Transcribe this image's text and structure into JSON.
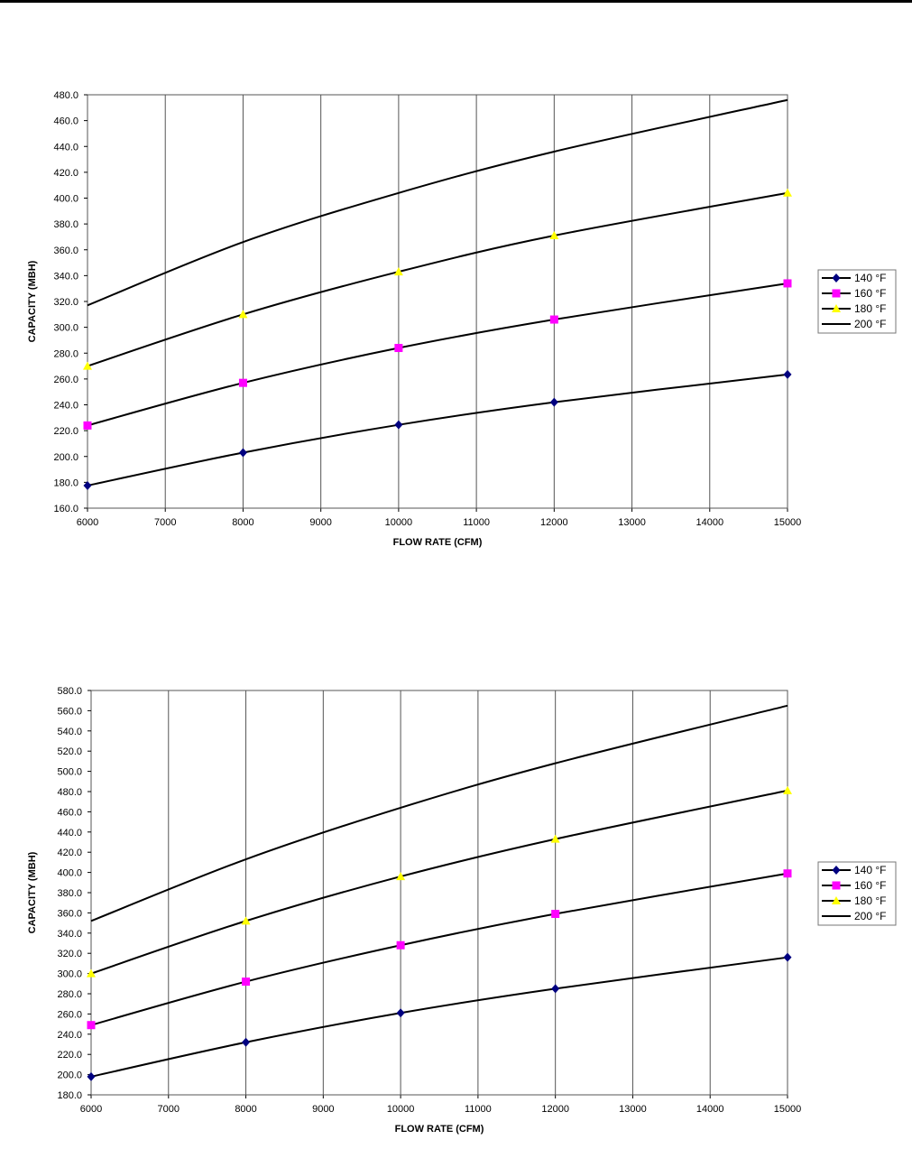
{
  "chart_data": [
    {
      "type": "line",
      "title": "",
      "xlabel": "FLOW RATE (CFM)",
      "ylabel": "CAPACITY (MBH)",
      "xlim": [
        6000,
        15000
      ],
      "ylim": [
        160,
        480
      ],
      "xticks": [
        6000,
        7000,
        8000,
        9000,
        10000,
        11000,
        12000,
        13000,
        14000,
        15000
      ],
      "yticks": [
        160,
        180,
        200,
        220,
        240,
        260,
        280,
        300,
        320,
        340,
        360,
        380,
        400,
        420,
        440,
        460,
        480
      ],
      "grid": "vertical",
      "legend_position": "right",
      "x": [
        6000,
        8000,
        10000,
        12000,
        15000
      ],
      "series": [
        {
          "name": "140 °F",
          "marker": "diamond",
          "color": "#000080",
          "values": [
            177.5,
            203,
            224.5,
            242,
            263.5
          ]
        },
        {
          "name": "160 °F",
          "marker": "square",
          "color": "#ff00ff",
          "values": [
            224,
            257,
            284,
            306,
            334
          ]
        },
        {
          "name": "180 °F",
          "marker": "triangle",
          "color": "#ffff00",
          "values": [
            270,
            310,
            343,
            371,
            404
          ]
        },
        {
          "name": "200 °F",
          "marker": "none",
          "color": "#000000",
          "values": [
            317,
            366,
            404,
            436,
            476
          ]
        }
      ]
    },
    {
      "type": "line",
      "title": "",
      "xlabel": "FLOW RATE (CFM)",
      "ylabel": "CAPACITY (MBH)",
      "xlim": [
        6000,
        15000
      ],
      "ylim": [
        180,
        580
      ],
      "xticks": [
        6000,
        7000,
        8000,
        9000,
        10000,
        11000,
        12000,
        13000,
        14000,
        15000
      ],
      "yticks": [
        180,
        200,
        220,
        240,
        260,
        280,
        300,
        320,
        340,
        360,
        380,
        400,
        420,
        440,
        460,
        480,
        500,
        520,
        540,
        560,
        580
      ],
      "grid": "vertical",
      "legend_position": "right",
      "x": [
        6000,
        8000,
        10000,
        12000,
        15000
      ],
      "series": [
        {
          "name": "140 °F",
          "marker": "diamond",
          "color": "#000080",
          "values": [
            198,
            232,
            261,
            285,
            316
          ]
        },
        {
          "name": "160 °F",
          "marker": "square",
          "color": "#ff00ff",
          "values": [
            249,
            292,
            328,
            359,
            399
          ]
        },
        {
          "name": "180 °F",
          "marker": "triangle",
          "color": "#ffff00",
          "values": [
            300,
            352,
            396,
            433,
            481
          ]
        },
        {
          "name": "200 °F",
          "marker": "none",
          "color": "#000000",
          "values": [
            352,
            413,
            464,
            508,
            565
          ]
        }
      ]
    }
  ]
}
